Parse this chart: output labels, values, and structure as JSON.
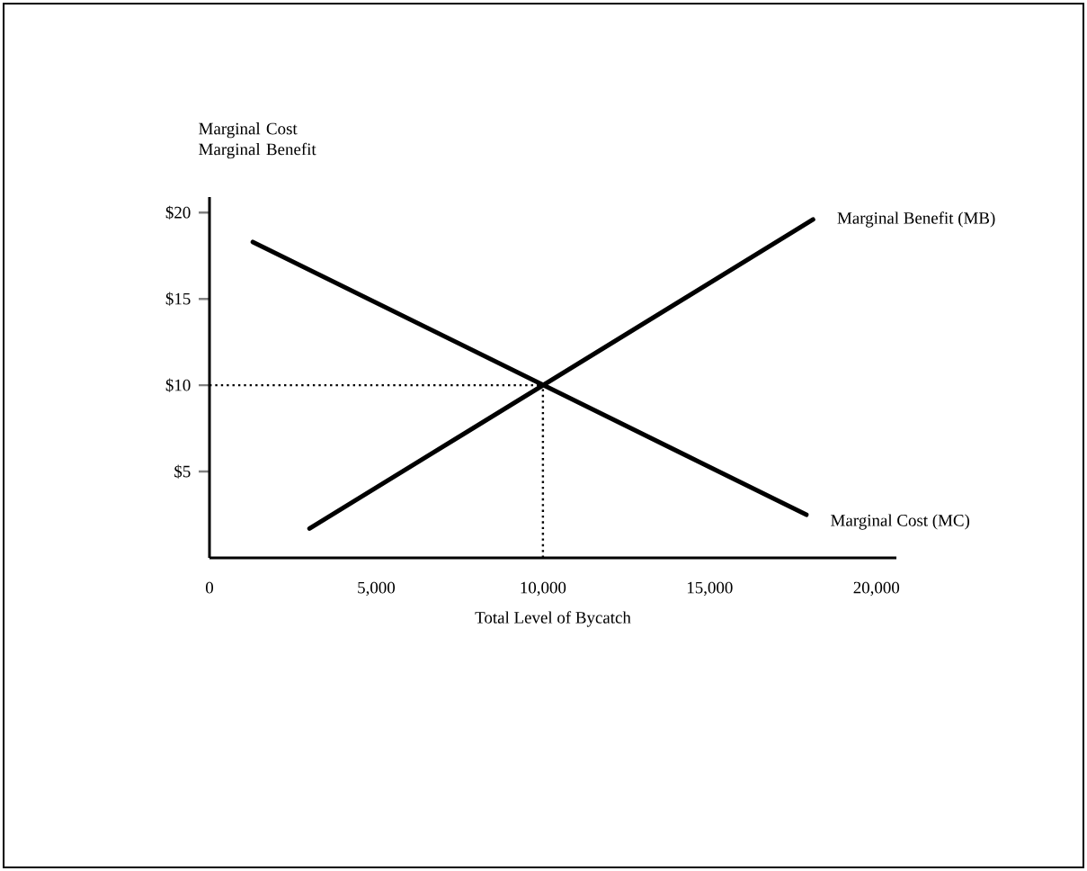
{
  "chart_data": {
    "type": "line",
    "xlabel": "Total Level of Bycatch",
    "ylabel": "Marginal Cost Marginal Benefit",
    "series": [
      {
        "name": "Marginal Benefit (MB)",
        "color": "#000000",
        "x": [
          3000,
          18100
        ],
        "values": [
          1.7,
          19.6
        ]
      },
      {
        "name": "Marginal Cost (MC)",
        "color": "#000000",
        "x": [
          1300,
          17900
        ],
        "values": [
          18.3,
          2.5
        ]
      }
    ],
    "xlim": [
      0,
      20600
    ],
    "ylim": [
      0,
      20.9
    ],
    "xticks": [
      0,
      {
        "value": 5000,
        "label": "5,000"
      },
      {
        "value": 10000,
        "label": "10,000"
      },
      {
        "value": 15000,
        "label": "15,000"
      },
      {
        "value": 20000,
        "label": "20,000"
      }
    ],
    "yticks": [
      {
        "value": 5,
        "label": "$5"
      },
      {
        "value": 10,
        "label": "$10"
      },
      {
        "value": 15,
        "label": "$15"
      },
      {
        "value": 20,
        "label": "$20"
      }
    ],
    "ref_lines": [
      {
        "axis": "y",
        "value": 10,
        "line_style": "dotted"
      },
      {
        "axis": "x",
        "value": 10000,
        "line_style": "dotted"
      }
    ],
    "grid": false,
    "legend": false,
    "marker": "none",
    "line_style": "solid"
  }
}
